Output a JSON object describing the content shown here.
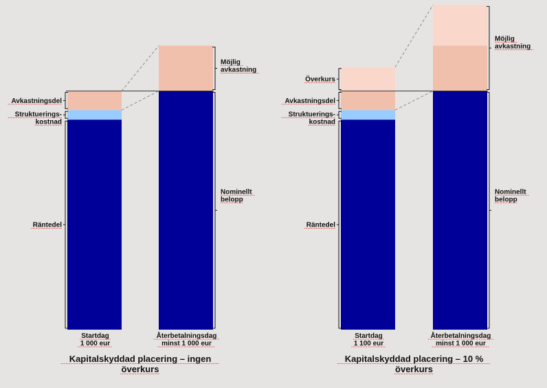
{
  "colors": {
    "background": "#e6e4e2",
    "interest": "#000099",
    "structuring": "#99ccff",
    "return": "#f0c0ac",
    "premium": "#f9d8cb"
  },
  "chart_data": [
    {
      "type": "bar",
      "title": "Kapitalskyddad placering – ingen överkurs",
      "title_lines": [
        "Kapitalskyddad placering – ingen",
        "överkurs"
      ],
      "ylim": [
        0,
        1300
      ],
      "bars": [
        {
          "category_lines": [
            "Startdag",
            "1 000 eur"
          ],
          "segments": [
            {
              "name": "Räntedel",
              "lines": [
                "Räntedel"
              ],
              "from": 0,
              "to": 880,
              "color": "interest"
            },
            {
              "name": "Strukturerings-kostnad",
              "lines": [
                "Struktuerings-",
                "kostnad"
              ],
              "from": 880,
              "to": 920,
              "color": "structuring"
            },
            {
              "name": "Avkastningsdel",
              "lines": [
                "Avkastningsdel"
              ],
              "from": 920,
              "to": 1000,
              "color": "return"
            }
          ]
        },
        {
          "category_lines": [
            "Återbetalningsdag",
            "minst 1 000 eur"
          ],
          "segments": [
            {
              "name": "Nominellt belopp",
              "lines": [
                "Nominellt",
                "belopp"
              ],
              "from": 0,
              "to": 1000,
              "color": "interest"
            },
            {
              "name": "Möjlig avkastning",
              "lines": [
                "Möjlig",
                "avkastning"
              ],
              "from": 1000,
              "to": 1190,
              "color": "return"
            }
          ]
        }
      ]
    },
    {
      "type": "bar",
      "title": "Kapitalskyddad placering – 10 % överkurs",
      "title_lines": [
        "Kapitalskyddad placering – 10 %",
        "överkurs"
      ],
      "ylim": [
        0,
        1300
      ],
      "bars": [
        {
          "category_lines": [
            "Startdag",
            "1 100 eur"
          ],
          "segments": [
            {
              "name": "Räntedel",
              "lines": [
                "Räntedel"
              ],
              "from": 0,
              "to": 880,
              "color": "interest"
            },
            {
              "name": "Strukturerings-kostnad",
              "lines": [
                "Struktuerings-",
                "kostnad"
              ],
              "from": 880,
              "to": 920,
              "color": "structuring"
            },
            {
              "name": "Avkastningsdel",
              "lines": [
                "Avkastningsdel"
              ],
              "from": 920,
              "to": 1000,
              "color": "return"
            },
            {
              "name": "Överkurs",
              "lines": [
                "Överkurs"
              ],
              "from": 1000,
              "to": 1100,
              "color": "premium"
            }
          ]
        },
        {
          "category_lines": [
            "Återbetalningsdag",
            "minst 1 000 eur"
          ],
          "segments": [
            {
              "name": "Nominellt belopp",
              "lines": [
                "Nominellt",
                "belopp"
              ],
              "from": 0,
              "to": 1000,
              "color": "interest"
            },
            {
              "name": "Möjlig avkastning",
              "lines": [
                "Möjlig",
                "avkastning"
              ],
              "from": 1000,
              "to": 1190,
              "color": "return"
            },
            {
              "name": "",
              "lines": [],
              "from": 1190,
              "to": 1360,
              "color": "premium"
            }
          ]
        }
      ]
    }
  ]
}
